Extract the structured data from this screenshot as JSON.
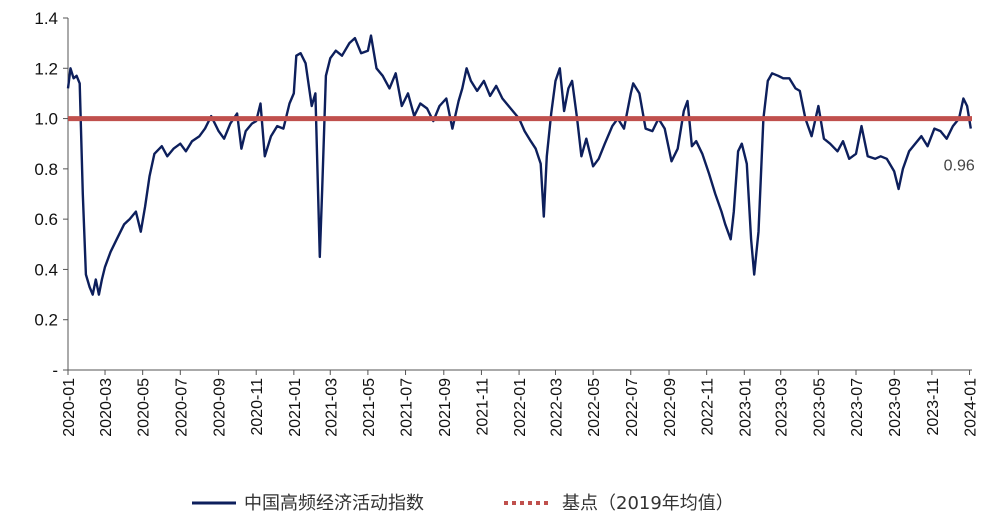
{
  "chart_data": {
    "type": "line",
    "title": "",
    "xlabel": "",
    "ylabel": "",
    "ylim": [
      0,
      1.4
    ],
    "y_ticks": [
      {
        "value": 0,
        "label": "-"
      },
      {
        "value": 0.2,
        "label": "0.2"
      },
      {
        "value": 0.4,
        "label": "0.4"
      },
      {
        "value": 0.6,
        "label": "0.6"
      },
      {
        "value": 0.8,
        "label": "0.8"
      },
      {
        "value": 1.0,
        "label": "1.0"
      },
      {
        "value": 1.2,
        "label": "1.2"
      },
      {
        "value": 1.4,
        "label": "1.4"
      }
    ],
    "x_ticks": [
      "2020-01",
      "2020-03",
      "2020-05",
      "2020-07",
      "2020-09",
      "2020-11",
      "2021-01",
      "2021-03",
      "2021-05",
      "2021-07",
      "2021-09",
      "2021-11",
      "2022-01",
      "2022-03",
      "2022-05",
      "2022-07",
      "2022-09",
      "2022-11",
      "2023-01",
      "2023-03",
      "2023-05",
      "2023-07",
      "2023-09",
      "2023-11",
      "2024-01"
    ],
    "grid": false,
    "legend_position": "bottom",
    "series": [
      {
        "name": "中国高频经济活动指数",
        "color": "#0d1f5c",
        "points": [
          [
            "2020-01-01",
            1.12
          ],
          [
            "2020-01-05",
            1.2
          ],
          [
            "2020-01-10",
            1.16
          ],
          [
            "2020-01-15",
            1.17
          ],
          [
            "2020-01-20",
            1.14
          ],
          [
            "2020-01-25",
            0.7
          ],
          [
            "2020-01-30",
            0.38
          ],
          [
            "2020-02-05",
            0.33
          ],
          [
            "2020-02-10",
            0.3
          ],
          [
            "2020-02-15",
            0.36
          ],
          [
            "2020-02-20",
            0.3
          ],
          [
            "2020-02-25",
            0.36
          ],
          [
            "2020-03-01",
            0.41
          ],
          [
            "2020-03-10",
            0.47
          ],
          [
            "2020-03-20",
            0.52
          ],
          [
            "2020-04-01",
            0.58
          ],
          [
            "2020-04-10",
            0.6
          ],
          [
            "2020-04-20",
            0.63
          ],
          [
            "2020-04-28",
            0.55
          ],
          [
            "2020-05-05",
            0.65
          ],
          [
            "2020-05-12",
            0.77
          ],
          [
            "2020-05-20",
            0.86
          ],
          [
            "2020-06-01",
            0.89
          ],
          [
            "2020-06-10",
            0.85
          ],
          [
            "2020-06-20",
            0.88
          ],
          [
            "2020-07-01",
            0.9
          ],
          [
            "2020-07-10",
            0.87
          ],
          [
            "2020-07-20",
            0.91
          ],
          [
            "2020-08-01",
            0.93
          ],
          [
            "2020-08-10",
            0.96
          ],
          [
            "2020-08-20",
            1.01
          ],
          [
            "2020-09-01",
            0.95
          ],
          [
            "2020-09-10",
            0.92
          ],
          [
            "2020-09-20",
            0.98
          ],
          [
            "2020-10-01",
            1.02
          ],
          [
            "2020-10-08",
            0.88
          ],
          [
            "2020-10-15",
            0.95
          ],
          [
            "2020-10-25",
            0.98
          ],
          [
            "2020-11-01",
            0.99
          ],
          [
            "2020-11-08",
            1.06
          ],
          [
            "2020-11-15",
            0.85
          ],
          [
            "2020-11-25",
            0.93
          ],
          [
            "2020-12-05",
            0.97
          ],
          [
            "2020-12-15",
            0.96
          ],
          [
            "2020-12-25",
            1.06
          ],
          [
            "2021-01-01",
            1.1
          ],
          [
            "2021-01-05",
            1.25
          ],
          [
            "2021-01-12",
            1.26
          ],
          [
            "2021-01-20",
            1.22
          ],
          [
            "2021-01-30",
            1.05
          ],
          [
            "2021-02-05",
            1.1
          ],
          [
            "2021-02-12",
            0.45
          ],
          [
            "2021-02-16",
            0.72
          ],
          [
            "2021-02-22",
            1.17
          ],
          [
            "2021-03-01",
            1.24
          ],
          [
            "2021-03-10",
            1.27
          ],
          [
            "2021-03-20",
            1.25
          ],
          [
            "2021-04-01",
            1.3
          ],
          [
            "2021-04-10",
            1.32
          ],
          [
            "2021-04-20",
            1.26
          ],
          [
            "2021-05-01",
            1.27
          ],
          [
            "2021-05-06",
            1.33
          ],
          [
            "2021-05-15",
            1.2
          ],
          [
            "2021-05-25",
            1.17
          ],
          [
            "2021-06-05",
            1.12
          ],
          [
            "2021-06-15",
            1.18
          ],
          [
            "2021-06-25",
            1.05
          ],
          [
            "2021-07-05",
            1.1
          ],
          [
            "2021-07-15",
            1.01
          ],
          [
            "2021-07-25",
            1.06
          ],
          [
            "2021-08-05",
            1.04
          ],
          [
            "2021-08-15",
            0.99
          ],
          [
            "2021-08-25",
            1.05
          ],
          [
            "2021-09-05",
            1.08
          ],
          [
            "2021-09-15",
            0.96
          ],
          [
            "2021-09-25",
            1.07
          ],
          [
            "2021-10-01",
            1.12
          ],
          [
            "2021-10-08",
            1.2
          ],
          [
            "2021-10-15",
            1.15
          ],
          [
            "2021-10-25",
            1.11
          ],
          [
            "2021-11-05",
            1.15
          ],
          [
            "2021-11-15",
            1.09
          ],
          [
            "2021-11-25",
            1.13
          ],
          [
            "2021-12-05",
            1.08
          ],
          [
            "2021-12-15",
            1.05
          ],
          [
            "2022-01-01",
            1.0
          ],
          [
            "2022-01-10",
            0.95
          ],
          [
            "2022-01-20",
            0.91
          ],
          [
            "2022-01-28",
            0.88
          ],
          [
            "2022-02-05",
            0.82
          ],
          [
            "2022-02-10",
            0.61
          ],
          [
            "2022-02-15",
            0.85
          ],
          [
            "2022-02-22",
            1.02
          ],
          [
            "2022-03-01",
            1.15
          ],
          [
            "2022-03-08",
            1.2
          ],
          [
            "2022-03-15",
            1.03
          ],
          [
            "2022-03-22",
            1.12
          ],
          [
            "2022-03-28",
            1.15
          ],
          [
            "2022-04-05",
            1.0
          ],
          [
            "2022-04-12",
            0.85
          ],
          [
            "2022-04-20",
            0.92
          ],
          [
            "2022-05-01",
            0.81
          ],
          [
            "2022-05-10",
            0.84
          ],
          [
            "2022-05-20",
            0.9
          ],
          [
            "2022-06-01",
            0.97
          ],
          [
            "2022-06-10",
            1.0
          ],
          [
            "2022-06-20",
            0.96
          ],
          [
            "2022-07-01",
            1.1
          ],
          [
            "2022-07-05",
            1.14
          ],
          [
            "2022-07-15",
            1.1
          ],
          [
            "2022-07-25",
            0.96
          ],
          [
            "2022-08-05",
            0.95
          ],
          [
            "2022-08-15",
            1.0
          ],
          [
            "2022-08-25",
            0.96
          ],
          [
            "2022-09-05",
            0.83
          ],
          [
            "2022-09-15",
            0.88
          ],
          [
            "2022-09-25",
            1.03
          ],
          [
            "2022-10-01",
            1.07
          ],
          [
            "2022-10-08",
            0.89
          ],
          [
            "2022-10-15",
            0.91
          ],
          [
            "2022-10-25",
            0.86
          ],
          [
            "2022-11-05",
            0.78
          ],
          [
            "2022-11-15",
            0.7
          ],
          [
            "2022-11-25",
            0.63
          ],
          [
            "2022-12-01",
            0.58
          ],
          [
            "2022-12-10",
            0.52
          ],
          [
            "2022-12-15",
            0.63
          ],
          [
            "2022-12-22",
            0.87
          ],
          [
            "2022-12-28",
            0.9
          ],
          [
            "2023-01-05",
            0.82
          ],
          [
            "2023-01-12",
            0.52
          ],
          [
            "2023-01-17",
            0.38
          ],
          [
            "2023-01-24",
            0.55
          ],
          [
            "2023-02-01",
            1.0
          ],
          [
            "2023-02-08",
            1.15
          ],
          [
            "2023-02-15",
            1.18
          ],
          [
            "2023-02-25",
            1.17
          ],
          [
            "2023-03-05",
            1.16
          ],
          [
            "2023-03-15",
            1.16
          ],
          [
            "2023-03-25",
            1.12
          ],
          [
            "2023-04-01",
            1.11
          ],
          [
            "2023-04-10",
            1.0
          ],
          [
            "2023-04-20",
            0.93
          ],
          [
            "2023-05-01",
            1.05
          ],
          [
            "2023-05-10",
            0.92
          ],
          [
            "2023-05-20",
            0.9
          ],
          [
            "2023-06-01",
            0.87
          ],
          [
            "2023-06-10",
            0.91
          ],
          [
            "2023-06-20",
            0.84
          ],
          [
            "2023-07-01",
            0.86
          ],
          [
            "2023-07-10",
            0.97
          ],
          [
            "2023-07-20",
            0.85
          ],
          [
            "2023-08-01",
            0.84
          ],
          [
            "2023-08-10",
            0.85
          ],
          [
            "2023-08-20",
            0.84
          ],
          [
            "2023-09-01",
            0.79
          ],
          [
            "2023-09-08",
            0.72
          ],
          [
            "2023-09-15",
            0.8
          ],
          [
            "2023-09-25",
            0.87
          ],
          [
            "2023-10-05",
            0.9
          ],
          [
            "2023-10-15",
            0.93
          ],
          [
            "2023-10-25",
            0.89
          ],
          [
            "2023-11-05",
            0.96
          ],
          [
            "2023-11-15",
            0.95
          ],
          [
            "2023-11-25",
            0.92
          ],
          [
            "2023-12-05",
            0.97
          ],
          [
            "2023-12-15",
            1.0
          ],
          [
            "2023-12-22",
            1.08
          ],
          [
            "2023-12-28",
            1.05
          ],
          [
            "2024-01-03",
            0.96
          ]
        ]
      },
      {
        "name": "基点（2019年均值）",
        "color": "#c0504d",
        "value": 1.0
      }
    ],
    "annotations": [
      {
        "text": "0.96",
        "x": "2024-01-03",
        "y": 0.96
      }
    ]
  }
}
